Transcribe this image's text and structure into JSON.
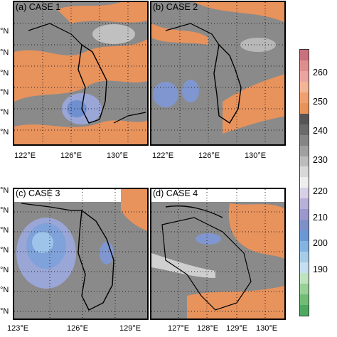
{
  "panels": [
    {
      "title": "(a) CASE 1",
      "xticks": [
        "122°E",
        "126°E",
        "130°E"
      ]
    },
    {
      "title": "(b) CASE 2",
      "xticks": [
        "122°E",
        "126°E",
        "130°E"
      ]
    },
    {
      "title": "(c) CASE 3",
      "xticks": [
        "123°E",
        "126°E",
        "129°E"
      ]
    },
    {
      "title": "(d) CASE 4",
      "xticks": [
        "127°E",
        "128°E",
        "129°E",
        "130°E"
      ]
    }
  ],
  "ylabels_top": [
    "°N",
    "°N",
    "°N",
    "°N",
    "°N",
    "°N",
    "°N"
  ],
  "ylabels_bottom": [
    "°N",
    "°N",
    "°N",
    "°N",
    "°N",
    "°N",
    "°N"
  ],
  "colorbar": {
    "labels": [
      "260",
      "250",
      "240",
      "230",
      "220",
      "210",
      "200",
      "190"
    ],
    "colors": [
      "#c8707c",
      "#de8e8e",
      "#eba4a0",
      "#f2b696",
      "#f0a070",
      "#e89458",
      "#555555",
      "#6a6a6a",
      "#858585",
      "#a0a0a0",
      "#bcbcbc",
      "#d8d8d8",
      "#eeeeee",
      "#d8d0e6",
      "#b8b0d8",
      "#9a98cc",
      "#7e90c8",
      "#6a98d4",
      "#84b4e0",
      "#a6cce8",
      "#c6dff0",
      "#bfe3bf",
      "#98d098",
      "#72bc78",
      "#4ea860"
    ]
  }
}
